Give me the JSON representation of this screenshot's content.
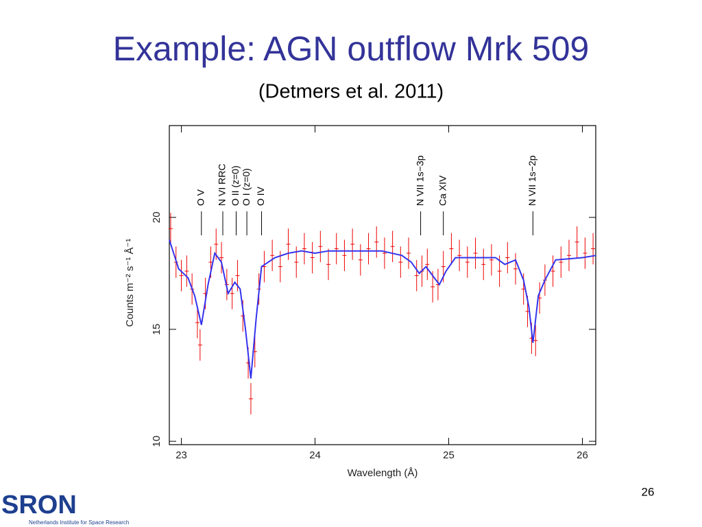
{
  "slide": {
    "title": "Example: AGN outflow Mrk 509",
    "subtitle": "(Detmers et al. 2011)",
    "page_number": "26",
    "logo": "SRON",
    "logo_caption": "Netherlands Institute for Space Research"
  },
  "chart_data": {
    "type": "scatter",
    "xlabel": "Wavelength (Å)",
    "ylabel": "Counts m⁻² s⁻¹ Å⁻¹",
    "xlim": [
      22.91,
      26.1
    ],
    "ylim": [
      9.85,
      24.1
    ],
    "xticks": [
      23,
      24,
      25,
      26
    ],
    "yticks": [
      10,
      15,
      20
    ],
    "series": [
      {
        "style": "errorbar",
        "color": "#ee0000",
        "error": 0.7,
        "x": [
          22.92,
          22.96,
          23.0,
          23.04,
          23.08,
          23.12,
          23.14,
          23.18,
          23.22,
          23.26,
          23.3,
          23.34,
          23.38,
          23.42,
          23.46,
          23.5,
          23.52,
          23.55,
          23.58,
          23.62,
          23.68,
          23.74,
          23.8,
          23.86,
          23.92,
          23.98,
          24.04,
          24.1,
          24.16,
          24.22,
          24.28,
          24.34,
          24.4,
          24.46,
          24.52,
          24.58,
          24.64,
          24.7,
          24.76,
          24.8,
          24.84,
          24.88,
          24.92,
          24.96,
          25.02,
          25.08,
          25.14,
          25.2,
          25.26,
          25.32,
          25.38,
          25.44,
          25.5,
          25.56,
          25.59,
          25.62,
          25.65,
          25.68,
          25.72,
          25.78,
          25.84,
          25.9,
          25.96,
          26.02,
          26.08
        ],
        "values": [
          19.5,
          18.0,
          17.4,
          17.6,
          16.8,
          15.3,
          14.3,
          16.6,
          18.0,
          18.8,
          18.2,
          17.0,
          16.6,
          17.4,
          15.6,
          13.5,
          11.9,
          14.0,
          16.8,
          17.8,
          18.3,
          17.8,
          18.8,
          18.0,
          18.6,
          18.2,
          18.7,
          17.9,
          18.6,
          18.3,
          18.8,
          18.1,
          18.6,
          18.9,
          18.4,
          18.7,
          18.0,
          18.4,
          17.4,
          17.6,
          17.9,
          16.9,
          17.0,
          17.8,
          18.6,
          18.3,
          18.0,
          18.4,
          17.9,
          18.1,
          17.6,
          18.2,
          17.7,
          16.8,
          15.8,
          14.6,
          14.5,
          16.4,
          17.2,
          17.6,
          18.0,
          18.3,
          18.9,
          18.4,
          18.6
        ]
      },
      {
        "style": "line",
        "color": "#3333ee",
        "x": [
          22.91,
          22.98,
          23.05,
          23.1,
          23.15,
          23.2,
          23.25,
          23.3,
          23.35,
          23.4,
          23.44,
          23.48,
          23.52,
          23.56,
          23.6,
          23.7,
          23.8,
          23.9,
          24.0,
          24.1,
          24.3,
          24.5,
          24.65,
          24.72,
          24.78,
          24.83,
          24.88,
          24.93,
          24.98,
          25.05,
          25.2,
          25.35,
          25.42,
          25.5,
          25.56,
          25.6,
          25.63,
          25.67,
          25.72,
          25.8,
          26.0,
          26.1
        ],
        "values": [
          19.0,
          17.7,
          17.3,
          16.5,
          15.2,
          17.0,
          18.4,
          18.0,
          16.6,
          17.1,
          16.8,
          15.0,
          12.8,
          15.5,
          17.8,
          18.2,
          18.4,
          18.5,
          18.4,
          18.5,
          18.5,
          18.5,
          18.3,
          18.0,
          17.5,
          17.8,
          17.4,
          17.0,
          17.6,
          18.2,
          18.2,
          18.2,
          17.9,
          18.1,
          17.2,
          16.0,
          14.4,
          16.5,
          17.2,
          18.1,
          18.2,
          18.3
        ]
      }
    ],
    "annotations": [
      {
        "text": "O V",
        "x": 23.15
      },
      {
        "text": "N VI RRC",
        "x": 23.31
      },
      {
        "text": "O II (z=0)",
        "x": 23.41
      },
      {
        "text": "O I (z=0)",
        "x": 23.49
      },
      {
        "text": "O IV",
        "x": 23.6
      },
      {
        "text": "N VII 1s−3p",
        "x": 24.79
      },
      {
        "text": "Ca XIV",
        "x": 24.96
      },
      {
        "text": "N VII 1s−2p",
        "x": 25.63
      }
    ]
  }
}
